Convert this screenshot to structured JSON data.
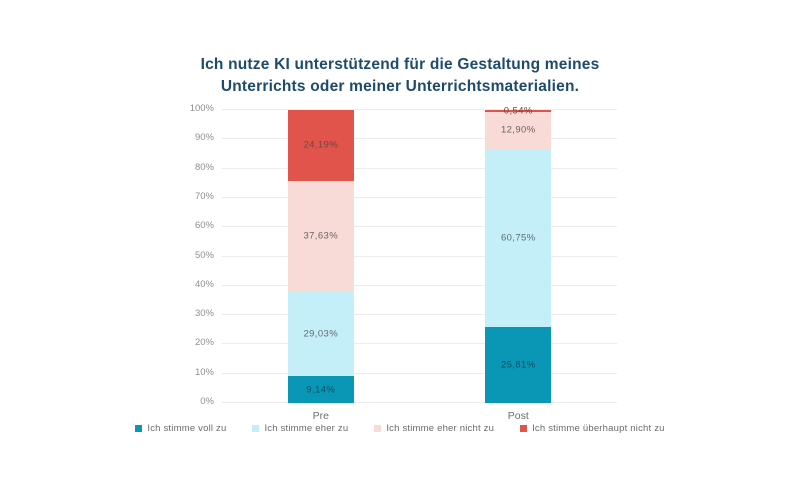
{
  "title": {
    "line1": "Ich nutze KI unterstützend für die Gestaltung meines",
    "line2": "Unterrichts oder meiner Unterrichtsmaterialien."
  },
  "colors": {
    "background": "#ffffff",
    "title_text": "#1d4b6b",
    "gridline": "#ececec",
    "axis_tick_text": "#8f8f8f",
    "category_text": "#6e6e6e",
    "legend_text": "#6b6b6b"
  },
  "chart_data": {
    "type": "bar",
    "stacked": true,
    "title": "Ich nutze KI unterstützend für die Gestaltung meines Unterrichts oder meiner Unterrichtsmaterialien.",
    "categories": [
      "Pre",
      "Post"
    ],
    "series": [
      {
        "name": "Ich stimme voll zu",
        "color": "#0a97b5",
        "label_color": "#0c4b61",
        "values": [
          9.14,
          25.81
        ],
        "labels": [
          "9,14%",
          "25,81%"
        ]
      },
      {
        "name": "Ich stimme eher zu",
        "color": "#c4eef8",
        "label_color": "#5f6d73",
        "values": [
          29.03,
          60.75
        ],
        "labels": [
          "29,03%",
          "60,75%"
        ]
      },
      {
        "name": "Ich stimme eher nicht zu",
        "color": "#f8dad6",
        "label_color": "#6e6361",
        "values": [
          37.63,
          12.9
        ],
        "labels": [
          "37,63%",
          "12,90%"
        ]
      },
      {
        "name": "Ich stimme überhaupt nicht zu",
        "color": "#e0544b",
        "label_color": "#75443f",
        "values": [
          24.19,
          0.54
        ],
        "labels": [
          "24,19%",
          "0,54%"
        ]
      }
    ],
    "y_ticks": [
      "0%",
      "10%",
      "20%",
      "30%",
      "40%",
      "50%",
      "60%",
      "70%",
      "80%",
      "90%",
      "100%"
    ],
    "ylim": [
      0,
      100
    ],
    "grid": true,
    "legend_position": "bottom"
  }
}
